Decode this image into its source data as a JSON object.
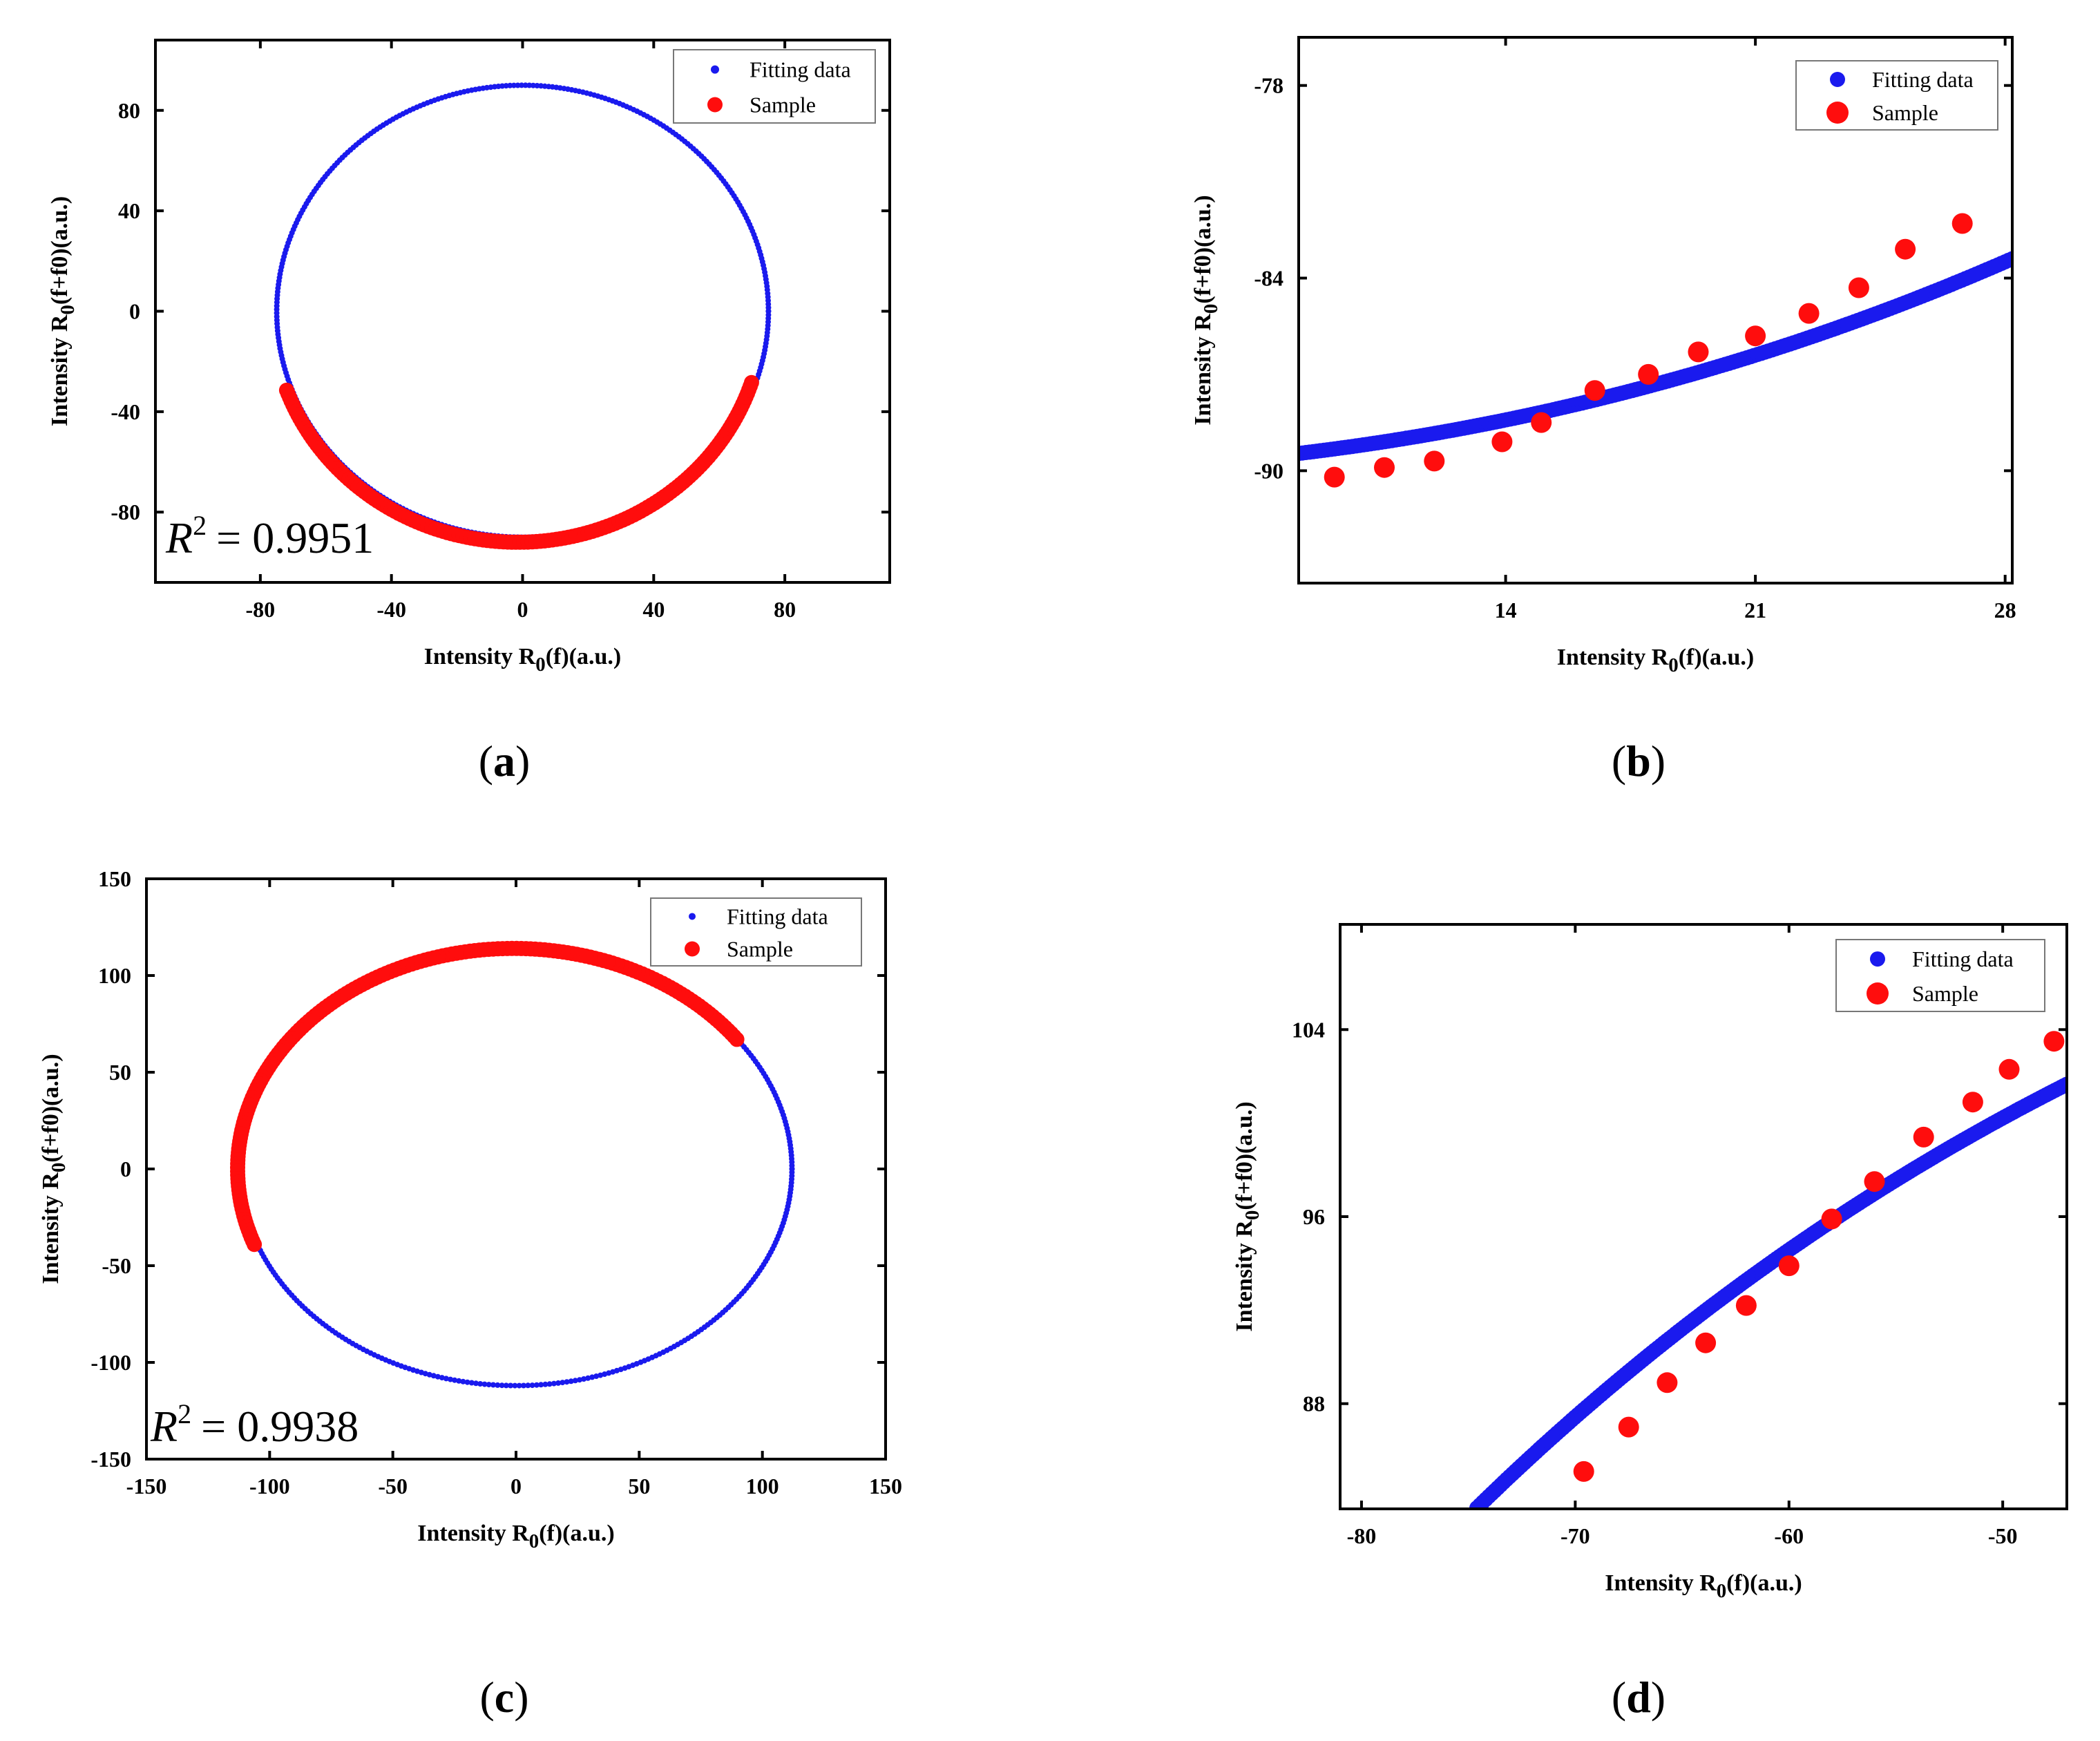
{
  "colors": {
    "fit": "#1a1aee",
    "sample": "#ff0d0d",
    "axis": "#000000"
  },
  "chart_data": [
    {
      "panel": "a",
      "type": "scatter",
      "xlabel": "Intensity R0(f)(a.u.)",
      "ylabel": "Intensity R0(f+f0)(a.u.)",
      "xlim": [
        -112,
        112
      ],
      "ylim": [
        -108,
        108
      ],
      "xticks": [
        -80,
        -40,
        0,
        40,
        80
      ],
      "yticks": [
        -80,
        -40,
        0,
        40,
        80
      ],
      "tick_labels_x": [
        "-80",
        "-40",
        "0",
        "40",
        "80"
      ],
      "tick_labels_y": [
        "-80",
        "-40",
        "0",
        "40",
        "80"
      ],
      "legend": [
        "Fitting data",
        "Sample"
      ],
      "r2_symbol": "R",
      "r2_exp": "2",
      "r2_text": "= 0.9951",
      "caption": "(a)",
      "series": [
        {
          "name": "Fitting data",
          "kind": "ellipse",
          "cx": 0,
          "cy": 0,
          "rx": 75,
          "ry": 90
        },
        {
          "name": "Sample",
          "kind": "ellipse-arc",
          "cx": -1.5,
          "cy": 0,
          "rx": 75,
          "ry": 92,
          "theta_start_deg": 200,
          "theta_end_deg": 342,
          "n": 150
        }
      ]
    },
    {
      "panel": "b",
      "type": "scatter",
      "xlabel": "Intensity R0(f)(a.u.)",
      "ylabel": "Intensity R0(f+f0)(a.u.)",
      "xlim": [
        8.2,
        28.2
      ],
      "ylim": [
        -93.5,
        -76.5
      ],
      "xticks": [
        14,
        21,
        28
      ],
      "yticks": [
        -90,
        -84,
        -78
      ],
      "tick_labels_x": [
        "14",
        "21",
        "28"
      ],
      "tick_labels_y": [
        "-90",
        "-84",
        "-78"
      ],
      "legend": [
        "Fitting data",
        "Sample"
      ],
      "caption": "(b)",
      "series": [
        {
          "name": "Fitting data",
          "kind": "ellipse-segment",
          "cx": 0,
          "cy": 0,
          "rx": 75,
          "ry": 90,
          "x_start": 8.2,
          "x_end": 28.2,
          "lower": true,
          "n": 200
        },
        {
          "name": "Sample",
          "kind": "points",
          "x": [
            9.2,
            10.6,
            12.0,
            13.9,
            15.0,
            16.5,
            18.0,
            19.4,
            21.0,
            22.5,
            23.9,
            25.2,
            26.8
          ],
          "y": [
            -90.2,
            -89.9,
            -89.7,
            -89.1,
            -88.5,
            -87.5,
            -87.0,
            -86.3,
            -85.8,
            -85.1,
            -84.3,
            -83.1,
            -82.3
          ]
        }
      ]
    },
    {
      "panel": "c",
      "type": "scatter",
      "xlabel": "Intensity R0(f)(a.u.)",
      "ylabel": "Intensity R0(f+f0)(a.u.)",
      "xlim": [
        -150,
        150
      ],
      "ylim": [
        -150,
        150
      ],
      "xticks": [
        -150,
        -100,
        -50,
        0,
        50,
        100,
        150
      ],
      "yticks": [
        -150,
        -100,
        -50,
        0,
        50,
        100,
        150
      ],
      "tick_labels_x": [
        "-150",
        "-100",
        "-50",
        "0",
        "50",
        "100",
        "150"
      ],
      "tick_labels_y": [
        "-150",
        "-100",
        "-50",
        "0",
        "50",
        "100",
        "150"
      ],
      "legend": [
        "Fitting data",
        "Sample"
      ],
      "r2_symbol": "R",
      "r2_exp": "2",
      "r2_text": "= 0.9938",
      "caption": "(c)",
      "series": [
        {
          "name": "Fitting data",
          "kind": "ellipse",
          "cx": 0,
          "cy": 0,
          "rx": 112,
          "ry": 112
        },
        {
          "name": "Sample",
          "kind": "ellipse-arc",
          "cx": -1,
          "cy": 0,
          "rx": 112,
          "ry": 114,
          "theta_start_deg": 36,
          "theta_end_deg": 200,
          "n": 170
        }
      ]
    },
    {
      "panel": "d",
      "type": "scatter",
      "xlabel": "Intensity R0(f)(a.u.)",
      "ylabel": "Intensity R0(f+f0)(a.u.)",
      "xlim": [
        -81,
        -47
      ],
      "ylim": [
        83.5,
        108.5
      ],
      "xticks": [
        -80,
        -70,
        -60,
        -50
      ],
      "yticks": [
        88,
        96,
        104
      ],
      "tick_labels_x": [
        "-80",
        "-70",
        "-60",
        "-50"
      ],
      "tick_labels_y": [
        "88",
        "96",
        "104"
      ],
      "legend": [
        "Fitting data",
        "Sample"
      ],
      "caption": "(d)",
      "series": [
        {
          "name": "Fitting data",
          "kind": "ellipse-segment",
          "cx": 0,
          "cy": 0,
          "rx": 112,
          "ry": 112,
          "x_start": -74.6,
          "x_end": -47,
          "lower": false,
          "n": 200
        },
        {
          "name": "Sample",
          "kind": "points",
          "x": [
            -69.6,
            -67.5,
            -65.7,
            -63.9,
            -62.0,
            -60.0,
            -58.0,
            -56.0,
            -53.7,
            -51.4,
            -49.7,
            -47.6
          ],
          "y": [
            85.1,
            87.0,
            88.9,
            90.6,
            92.2,
            93.9,
            95.9,
            97.5,
            99.4,
            100.9,
            102.3,
            103.5
          ]
        }
      ]
    }
  ]
}
